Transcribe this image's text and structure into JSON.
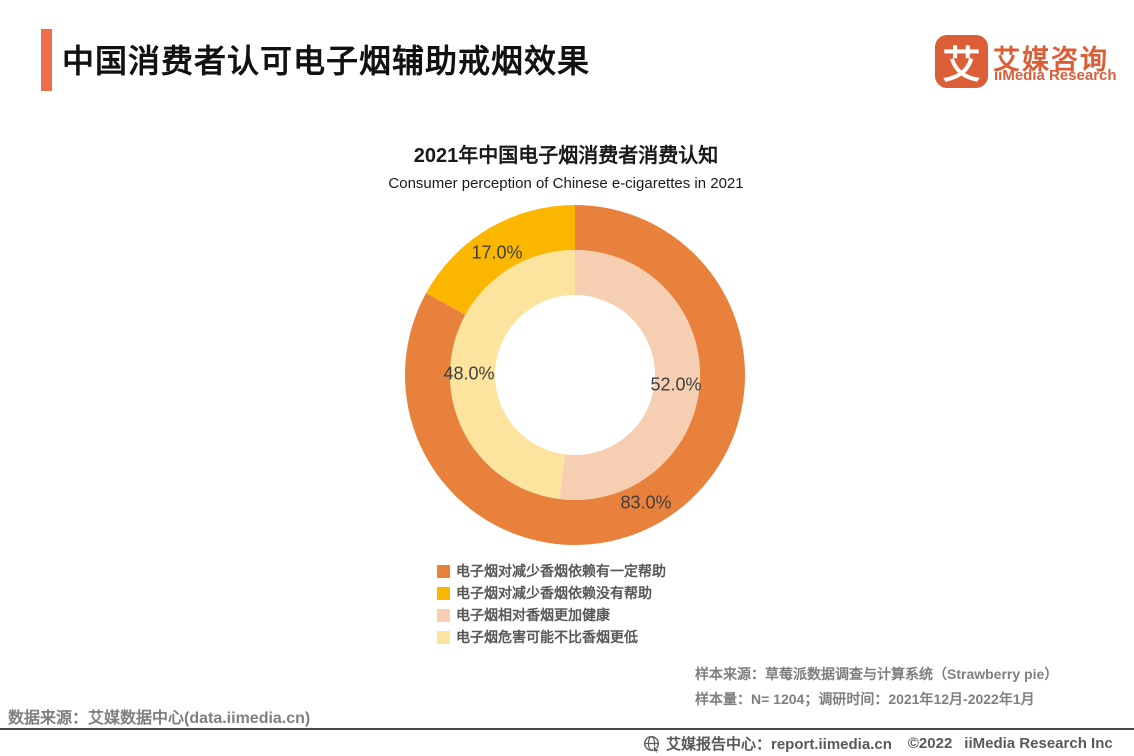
{
  "header": {
    "title": "中国消费者认可电子烟辅助戒烟效果",
    "logo_char": "艾",
    "brand_cn": "艾媒咨询",
    "brand_en": "iiMedia Research",
    "accent_color": "#EE6E47"
  },
  "chart_data": {
    "type": "donut",
    "title": "2021年中国电子烟消费者消费认知",
    "subtitle": "Consumer perception of Chinese e-cigarettes in 2021",
    "unit": "%",
    "legend_position": "bottom",
    "rings": [
      {
        "name": "outer",
        "segments": [
          {
            "label": "电子烟对减少香烟依赖有一定帮助",
            "value": 83.0,
            "color": "#E8813C"
          },
          {
            "label": "电子烟对减少香烟依赖没有帮助",
            "value": 17.0,
            "color": "#FBB700"
          }
        ]
      },
      {
        "name": "inner",
        "segments": [
          {
            "label": "电子烟相对香烟更加健康",
            "value": 52.0,
            "color": "#F6CFB2"
          },
          {
            "label": "电子烟危害可能不比香烟更低",
            "value": 48.0,
            "color": "#FCE49E"
          }
        ]
      }
    ],
    "data_labels": [
      {
        "text": "17.0%"
      },
      {
        "text": "48.0%"
      },
      {
        "text": "52.0%"
      },
      {
        "text": "83.0%"
      }
    ]
  },
  "legend": [
    {
      "label": "电子烟对减少香烟依赖有一定帮助",
      "color": "#E8813C"
    },
    {
      "label": "电子烟对减少香烟依赖没有帮助",
      "color": "#FBB700"
    },
    {
      "label": "电子烟相对香烟更加健康",
      "color": "#F6CFB2"
    },
    {
      "label": "电子烟危害可能不比香烟更低",
      "color": "#FCE49E"
    }
  ],
  "notes": {
    "sample_source": "样本来源：草莓派数据调查与计算系统（Strawberry pie）",
    "sample_info": "样本量：N= 1204；调研时间：2021年12月-2022年1月"
  },
  "data_source": "数据来源：艾媒数据中心(data.iimedia.cn)",
  "footer": {
    "center_label": "艾媒报告中心：report.iimedia.cn",
    "copyright": "©2022",
    "company": "iiMedia Research Inc"
  }
}
